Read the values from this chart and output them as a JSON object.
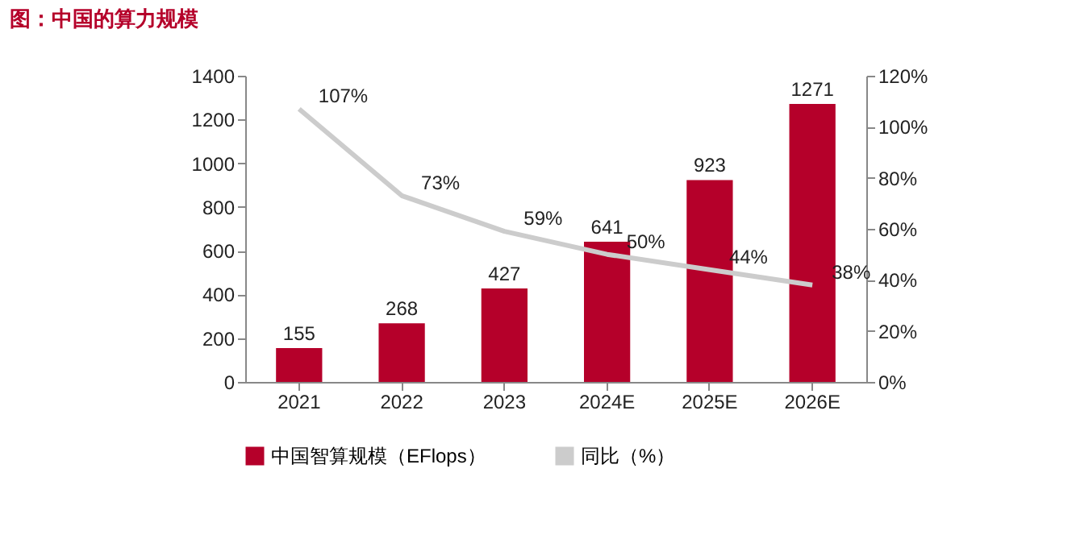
{
  "chart_data": {
    "type": "bar",
    "title": "图：中国的算力规模",
    "categories": [
      "2021",
      "2022",
      "2023",
      "2024E",
      "2025E",
      "2026E"
    ],
    "series": [
      {
        "name": "中国智算规模（EFlops）",
        "type": "bar",
        "color": "#b5002a",
        "values": [
          155,
          268,
          427,
          641,
          923,
          1271
        ],
        "value_labels": [
          "155",
          "268",
          "427",
          "641",
          "923",
          "1271"
        ]
      },
      {
        "name": "同比（%）",
        "type": "line",
        "axis": "y2",
        "color": "#cccccc",
        "values": [
          107,
          73,
          59,
          50,
          44,
          38
        ],
        "value_labels": [
          "107%",
          "73%",
          "59%",
          "50%",
          "44%",
          "38%"
        ]
      }
    ],
    "ylim": [
      0,
      1400
    ],
    "yticks": [
      0,
      200,
      400,
      600,
      800,
      1000,
      1200,
      1400
    ],
    "y2lim": [
      0,
      120
    ],
    "y2ticks": [
      {
        "value": 0,
        "label": "0%"
      },
      {
        "value": 20,
        "label": "20%"
      },
      {
        "value": 40,
        "label": "40%"
      },
      {
        "value": 60,
        "label": "60%"
      },
      {
        "value": 80,
        "label": "80%"
      },
      {
        "value": 100,
        "label": "100%"
      },
      {
        "value": 120,
        "label": "120%"
      }
    ],
    "grid": false,
    "legend": "bottom",
    "marker": "none"
  }
}
